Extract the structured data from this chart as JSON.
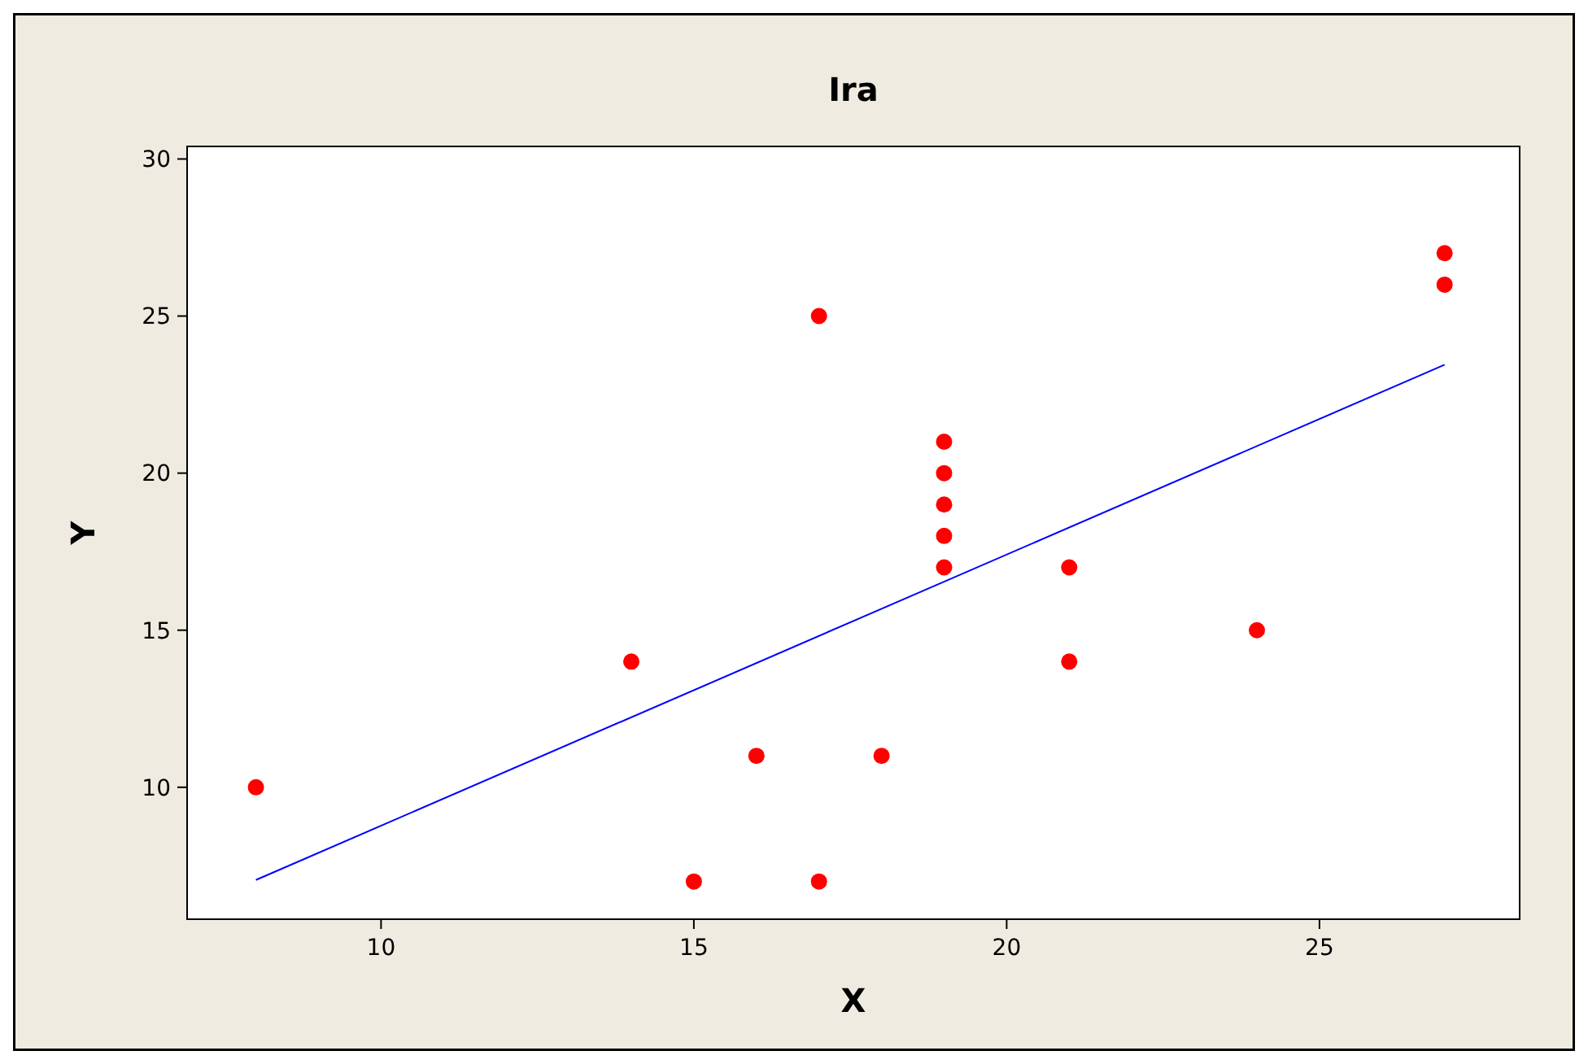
{
  "chart_data": {
    "type": "scatter",
    "title": "Ira",
    "xlabel": "X",
    "ylabel": "Y",
    "xlim": [
      6.9,
      28.2
    ],
    "ylim": [
      5.8,
      30.4
    ],
    "xticks": [
      10,
      15,
      20,
      25
    ],
    "yticks": [
      10,
      15,
      20,
      25,
      30
    ],
    "grid": false,
    "marker": "circle",
    "series": [
      {
        "color": "#ff0000",
        "x": [
          8,
          14,
          15,
          16,
          17,
          17,
          18,
          19,
          19,
          19,
          19,
          19,
          21,
          21,
          24,
          27,
          27
        ],
        "values": [
          10,
          14,
          7,
          11,
          25,
          7,
          11,
          21,
          20,
          19,
          18,
          17,
          17,
          14,
          15,
          27,
          26
        ]
      },
      {
        "type": "line",
        "marker": "none",
        "color": "#0000ff",
        "x": [
          8,
          27
        ],
        "values": [
          7.05,
          23.45
        ]
      }
    ]
  }
}
